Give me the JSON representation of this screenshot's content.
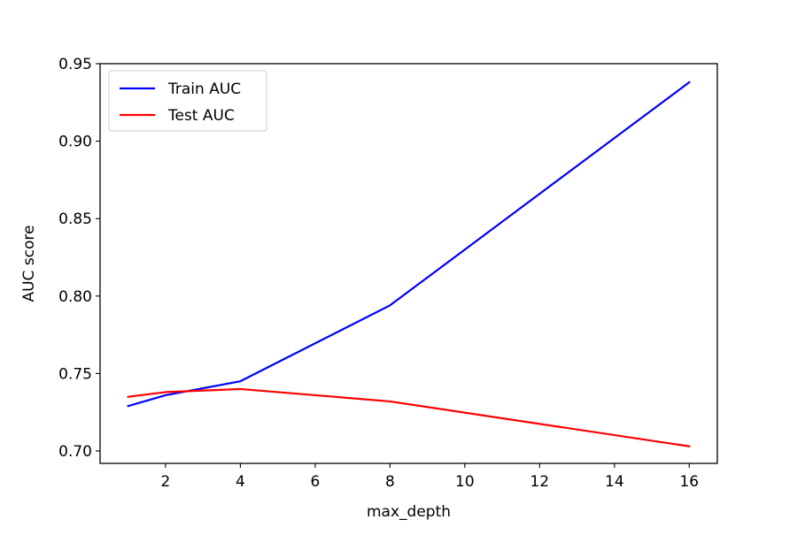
{
  "chart_data": {
    "type": "line",
    "title": "",
    "xlabel": "max_depth",
    "ylabel": "AUC score",
    "x": [
      1,
      2,
      4,
      8,
      16
    ],
    "series": [
      {
        "name": "Train AUC",
        "color": "#0000ff",
        "values": [
          0.729,
          0.736,
          0.745,
          0.794,
          0.938
        ]
      },
      {
        "name": "Test AUC",
        "color": "#ff0000",
        "values": [
          0.735,
          0.738,
          0.74,
          0.732,
          0.703
        ]
      }
    ],
    "xlim": [
      0.25,
      16.75
    ],
    "ylim": [
      0.692,
      0.95
    ],
    "xticks": [
      2,
      4,
      6,
      8,
      10,
      12,
      14,
      16
    ],
    "xtick_labels": [
      "2",
      "4",
      "6",
      "8",
      "10",
      "12",
      "14",
      "16"
    ],
    "yticks": [
      0.7,
      0.75,
      0.8,
      0.85,
      0.9,
      0.95
    ],
    "ytick_labels": [
      "0.70",
      "0.75",
      "0.80",
      "0.85",
      "0.90",
      "0.95"
    ],
    "grid": false,
    "legend_position": "top-left"
  }
}
